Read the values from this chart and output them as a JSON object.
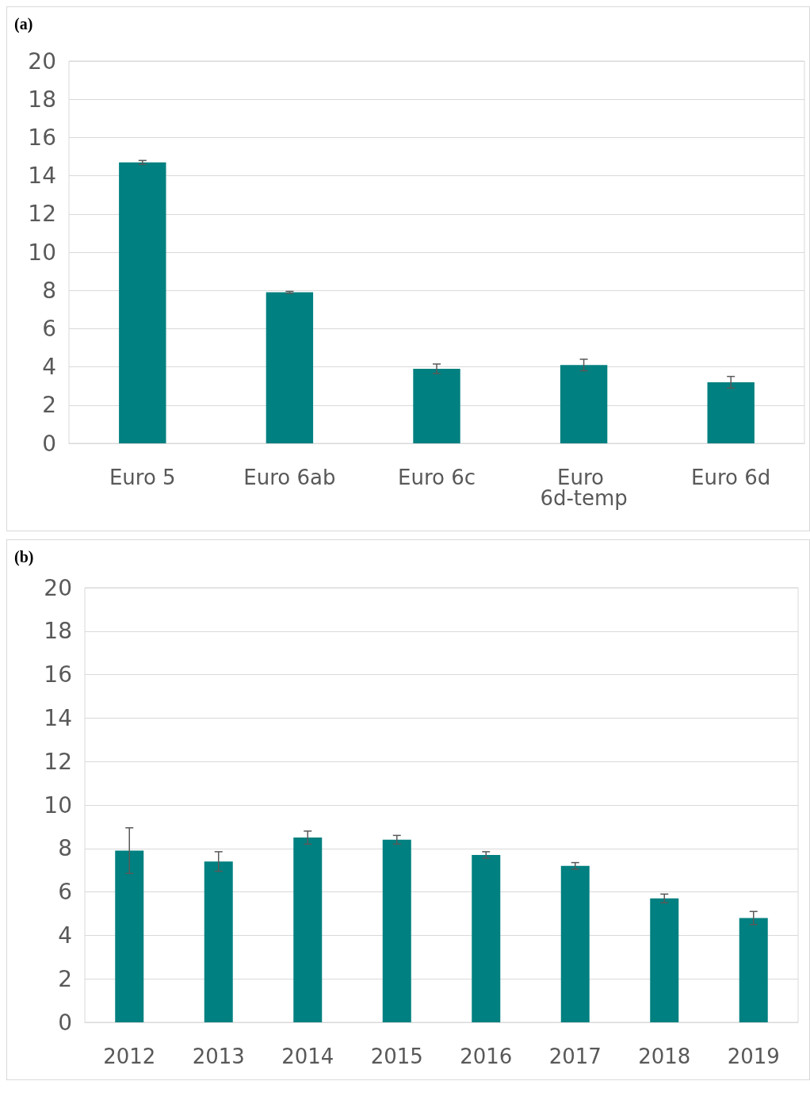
{
  "chart_data": [
    {
      "type": "bar",
      "title": "(a)",
      "categories": [
        "Euro 5",
        "Euro 6ab",
        "Euro 6c",
        "Euro 6d-temp",
        "Euro 6d"
      ],
      "values": [
        14.7,
        7.9,
        3.9,
        4.1,
        3.2
      ],
      "errors": [
        0.1,
        0.05,
        0.25,
        0.3,
        0.3
      ],
      "color": "#008080",
      "ylim": [
        0,
        20
      ],
      "yticks": [
        0,
        2,
        4,
        6,
        8,
        10,
        12,
        14,
        16,
        18,
        20
      ],
      "grid": "y"
    },
    {
      "type": "bar",
      "title": "(b)",
      "categories": [
        "2012",
        "2013",
        "2014",
        "2015",
        "2016",
        "2017",
        "2018",
        "2019"
      ],
      "values": [
        7.9,
        7.4,
        8.5,
        8.4,
        7.7,
        7.2,
        5.7,
        4.8
      ],
      "errors": [
        1.05,
        0.45,
        0.3,
        0.2,
        0.15,
        0.15,
        0.2,
        0.3
      ],
      "color": "#008080",
      "ylim": [
        0,
        20
      ],
      "yticks": [
        0,
        2,
        4,
        6,
        8,
        10,
        12,
        14,
        16,
        18,
        20
      ],
      "grid": "y"
    }
  ]
}
